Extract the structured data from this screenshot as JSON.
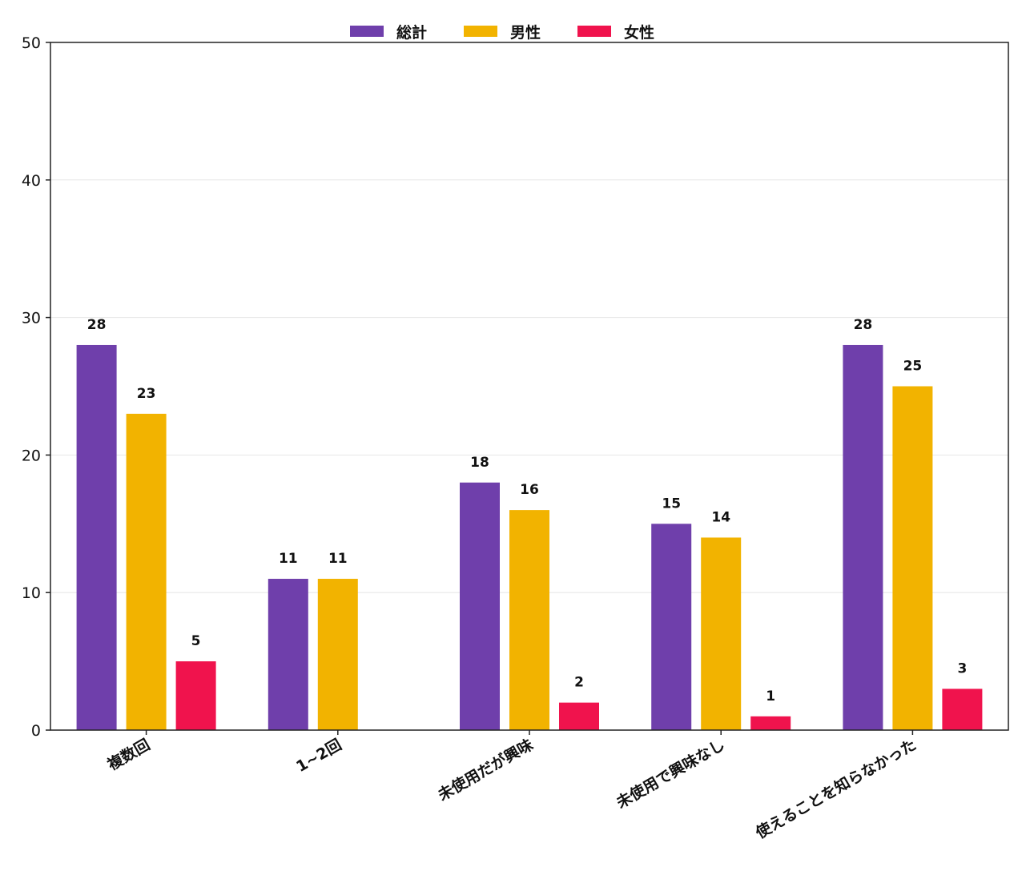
{
  "chart_data": {
    "type": "bar",
    "categories": [
      "複数回",
      "1~2回",
      "未使用だが興味",
      "未使用で興味なし",
      "使えることを知らなかった"
    ],
    "series": [
      {
        "name": "総計",
        "color": "#6f3fab",
        "values": [
          28,
          11,
          18,
          15,
          28
        ]
      },
      {
        "name": "男性",
        "color": "#f2b300",
        "values": [
          23,
          11,
          16,
          14,
          25
        ]
      },
      {
        "name": "女性",
        "color": "#f0134d",
        "values": [
          5,
          0,
          2,
          1,
          3
        ]
      }
    ],
    "ylim": [
      0,
      50
    ],
    "yticks": [
      0,
      10,
      20,
      30,
      40,
      50
    ],
    "grid": true,
    "legend_position": "top-center",
    "title": "",
    "xlabel": "",
    "ylabel": ""
  }
}
